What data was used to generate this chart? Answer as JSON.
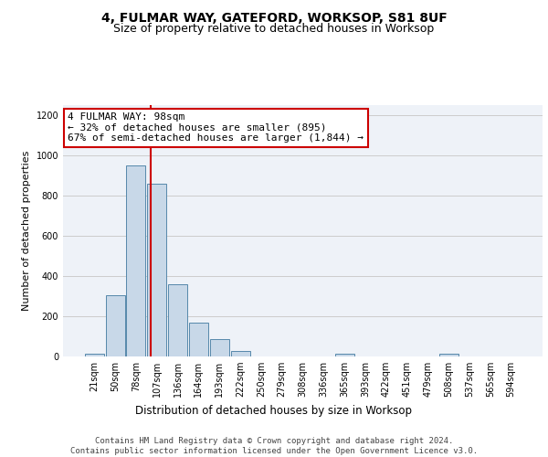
{
  "title1": "4, FULMAR WAY, GATEFORD, WORKSOP, S81 8UF",
  "title2": "Size of property relative to detached houses in Worksop",
  "xlabel": "Distribution of detached houses by size in Worksop",
  "ylabel": "Number of detached properties",
  "bar_labels": [
    "21sqm",
    "50sqm",
    "78sqm",
    "107sqm",
    "136sqm",
    "164sqm",
    "193sqm",
    "222sqm",
    "250sqm",
    "279sqm",
    "308sqm",
    "336sqm",
    "365sqm",
    "393sqm",
    "422sqm",
    "451sqm",
    "479sqm",
    "508sqm",
    "537sqm",
    "565sqm",
    "594sqm"
  ],
  "bar_values": [
    12,
    305,
    950,
    860,
    360,
    170,
    85,
    27,
    0,
    0,
    0,
    0,
    12,
    0,
    0,
    0,
    0,
    12,
    0,
    0,
    0
  ],
  "bar_color": "#c8d8e8",
  "bar_edge_color": "#5588aa",
  "annotation_text": "4 FULMAR WAY: 98sqm\n← 32% of detached houses are smaller (895)\n67% of semi-detached houses are larger (1,844) →",
  "annotation_box_color": "#ffffff",
  "annotation_box_edge": "#cc0000",
  "red_line_color": "#cc0000",
  "ylim": [
    0,
    1250
  ],
  "yticks": [
    0,
    200,
    400,
    600,
    800,
    1000,
    1200
  ],
  "grid_color": "#cccccc",
  "bg_color": "#eef2f8",
  "footer_text": "Contains HM Land Registry data © Crown copyright and database right 2024.\nContains public sector information licensed under the Open Government Licence v3.0.",
  "title1_fontsize": 10,
  "title2_fontsize": 9,
  "xlabel_fontsize": 8.5,
  "ylabel_fontsize": 8,
  "tick_fontsize": 7,
  "annotation_fontsize": 8,
  "footer_fontsize": 6.5,
  "line_x_index": 2.69
}
